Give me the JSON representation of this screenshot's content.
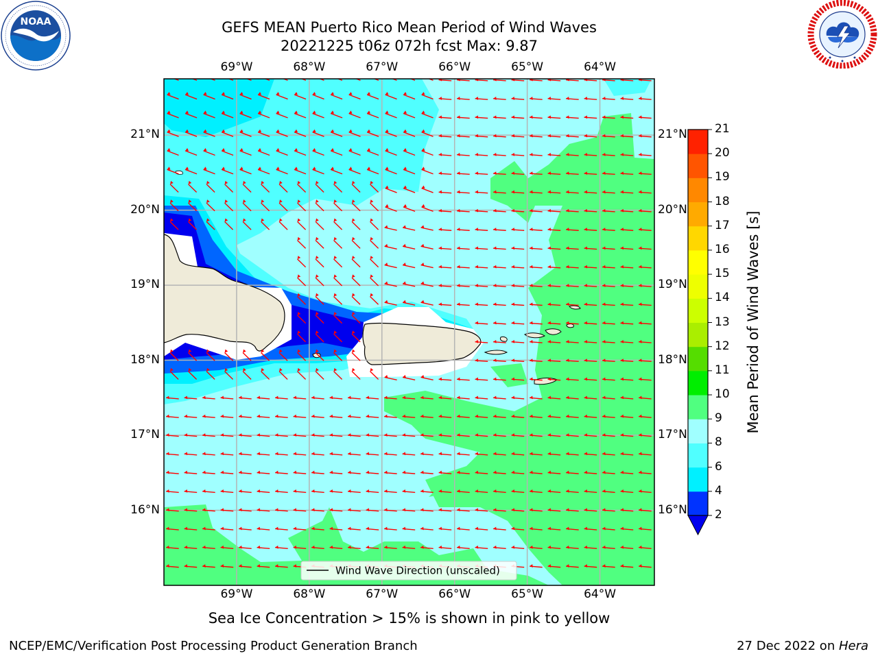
{
  "header": {
    "title_line1": "GEFS MEAN Puerto Rico Mean Period of Wind Waves",
    "title_line2": "20221225 t06z 072h fcst   Max: 9.87"
  },
  "logos": {
    "left": {
      "name": "noaa-logo",
      "text": "NOAA",
      "ring_text": "NATIONAL OCEANIC AND ATMOSPHERIC ADMINISTRATION · U.S. DEPARTMENT OF COMMERCE"
    },
    "right": {
      "name": "nws-logo",
      "ring_text": "NATIONAL WEATHER SERVICE"
    }
  },
  "map": {
    "lon_labels": [
      "69°W",
      "68°W",
      "67°W",
      "66°W",
      "65°W",
      "64°W"
    ],
    "lat_labels": [
      "21°N",
      "20°N",
      "19°N",
      "18°N",
      "17°N",
      "16°N"
    ],
    "lon_values": [
      -69,
      -68,
      -67,
      -66,
      -65,
      -64
    ],
    "lat_values": [
      21,
      20,
      19,
      18,
      17,
      16
    ],
    "lon_range": [
      -70.0,
      -63.25
    ],
    "lat_range": [
      15.0,
      21.75
    ],
    "grid": true,
    "legend": {
      "label": "Wind Wave Direction (unscaled)",
      "placement": "bottom-center"
    },
    "arrow_color": "#ff0000",
    "land_color": "#efebd9",
    "coast_color": "#000000"
  },
  "colorbar": {
    "label": "Mean Period of Wind Waves [s]",
    "ticks": [
      "2",
      "4",
      "6",
      "8",
      "9",
      "10",
      "11",
      "12",
      "13",
      "14",
      "15",
      "16",
      "17",
      "18",
      "19",
      "20",
      "21"
    ],
    "colors": [
      "#0033ff",
      "#00f0ff",
      "#50ffff",
      "#a0ffff",
      "#50ff80",
      "#00ee00",
      "#55dd00",
      "#aaee00",
      "#ccff00",
      "#eeff00",
      "#ffff00",
      "#ffd700",
      "#ffaa00",
      "#ff8800",
      "#ff5500",
      "#ff2200"
    ],
    "extend_color": "#0000ee"
  },
  "chart_data": {
    "type": "heatmap",
    "title": "GEFS MEAN Puerto Rico Mean Period of Wind Waves",
    "subtitle": "20221225 t06z 072h fcst   Max: 9.87",
    "xlabel": "",
    "ylabel": "",
    "colorbar_label": "Mean Period of Wind Waves [s]",
    "levels": [
      2,
      4,
      6,
      8,
      9,
      10,
      11,
      12,
      13,
      14,
      15,
      16,
      17,
      18,
      19,
      20,
      21
    ],
    "max": 9.87,
    "x_ticks": [
      "69°W",
      "68°W",
      "67°W",
      "66°W",
      "65°W",
      "64°W"
    ],
    "y_ticks": [
      "21°N",
      "20°N",
      "19°N",
      "18°N",
      "17°N",
      "16°N"
    ],
    "legend": [
      "Wind Wave Direction (unscaled)"
    ]
  },
  "note": "Sea Ice Concentration > 15% is shown in pink to yellow",
  "footer": {
    "left": "NCEP/EMC/Verification Post Processing Product Generation Branch",
    "right_prefix": "27 Dec 2022 on ",
    "right_italic": "Hera"
  }
}
